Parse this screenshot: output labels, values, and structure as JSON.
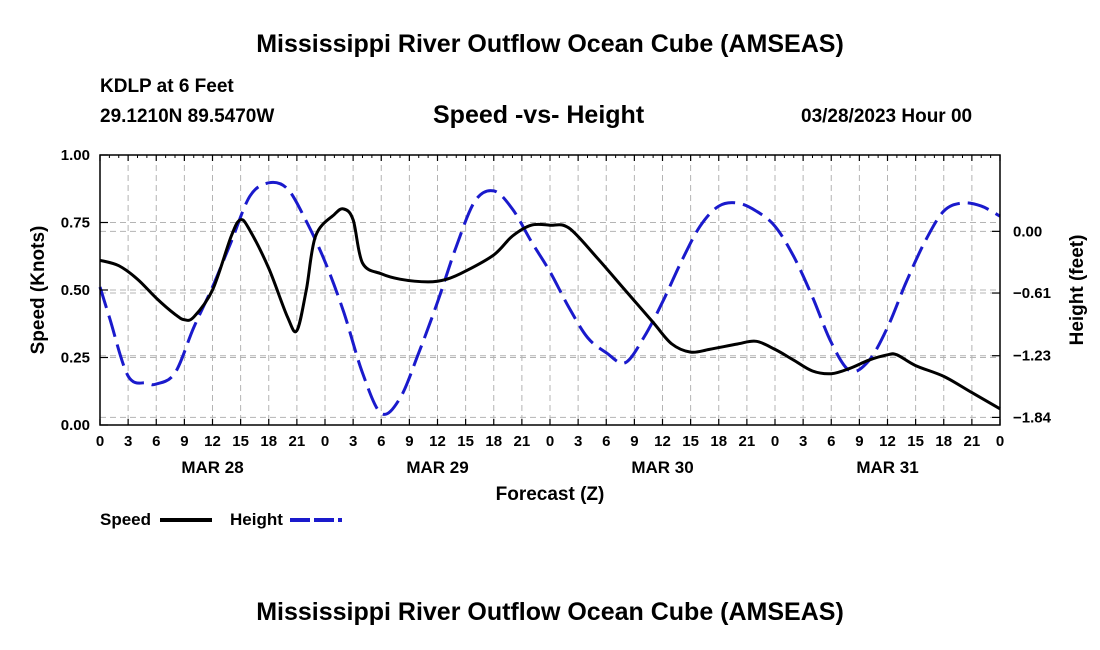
{
  "header": {
    "title": "Mississippi River Outflow Ocean Cube (AMSEAS)",
    "station": "KDLP at 6 Feet",
    "coordinates": "29.1210N  89.5470W",
    "chart_title": "Speed -vs- Height",
    "datetime": "03/28/2023 Hour 00"
  },
  "footer": {
    "title": "Mississippi River Outflow Ocean Cube (AMSEAS)"
  },
  "chart_data": {
    "type": "line",
    "title": "Speed -vs- Height",
    "xlabel": "Forecast (Z)",
    "ylabel_left": "Speed (Knots)",
    "ylabel_right": "Height (feet)",
    "x_range_hours": [
      0,
      96
    ],
    "x_tick_step_hours": 3,
    "x_tick_labels": [
      "0",
      "3",
      "6",
      "9",
      "12",
      "15",
      "18",
      "21",
      "0",
      "3",
      "6",
      "9",
      "12",
      "15",
      "18",
      "21",
      "0",
      "3",
      "6",
      "9",
      "12",
      "15",
      "18",
      "21",
      "0",
      "3",
      "6",
      "9",
      "12",
      "15",
      "18",
      "21",
      "0"
    ],
    "day_labels": [
      {
        "label": "MAR 28",
        "hour": 12
      },
      {
        "label": "MAR 29",
        "hour": 36
      },
      {
        "label": "MAR 30",
        "hour": 60
      },
      {
        "label": "MAR 31",
        "hour": 84
      }
    ],
    "y_left": {
      "range": [
        0,
        1
      ],
      "ticks": [
        0,
        0.25,
        0.5,
        0.75,
        1
      ],
      "tick_labels": [
        "0.00",
        "0.25",
        "0.50",
        "0.75",
        "1.00"
      ]
    },
    "y_right": {
      "range": [
        -1.915,
        0.755
      ],
      "ticks": [
        0.0,
        -0.61,
        -1.23,
        -1.84
      ],
      "tick_labels": [
        "0.00",
        "−0.61",
        "−1.23",
        "−1.84"
      ]
    },
    "grid": true,
    "legend_position": "bottom-left",
    "series": [
      {
        "name": "Speed",
        "axis": "left",
        "color": "#000000",
        "style": "solid",
        "points": [
          [
            0,
            0.61
          ],
          [
            2,
            0.59
          ],
          [
            4,
            0.54
          ],
          [
            6,
            0.47
          ],
          [
            8,
            0.41
          ],
          [
            9,
            0.39
          ],
          [
            10,
            0.4
          ],
          [
            12,
            0.5
          ],
          [
            14,
            0.7
          ],
          [
            15,
            0.76
          ],
          [
            16,
            0.72
          ],
          [
            18,
            0.58
          ],
          [
            20,
            0.4
          ],
          [
            21,
            0.35
          ],
          [
            22,
            0.5
          ],
          [
            23,
            0.7
          ],
          [
            25,
            0.78
          ],
          [
            26,
            0.8
          ],
          [
            27,
            0.76
          ],
          [
            28,
            0.6
          ],
          [
            30,
            0.56
          ],
          [
            32,
            0.54
          ],
          [
            35,
            0.53
          ],
          [
            37,
            0.54
          ],
          [
            39,
            0.57
          ],
          [
            42,
            0.63
          ],
          [
            44,
            0.7
          ],
          [
            46,
            0.74
          ],
          [
            48,
            0.74
          ],
          [
            50,
            0.73
          ],
          [
            53,
            0.62
          ],
          [
            56,
            0.5
          ],
          [
            59,
            0.38
          ],
          [
            61,
            0.3
          ],
          [
            63,
            0.27
          ],
          [
            65,
            0.28
          ],
          [
            68,
            0.3
          ],
          [
            70,
            0.31
          ],
          [
            72,
            0.28
          ],
          [
            74,
            0.24
          ],
          [
            76,
            0.2
          ],
          [
            78,
            0.19
          ],
          [
            80,
            0.21
          ],
          [
            82,
            0.24
          ],
          [
            84,
            0.26
          ],
          [
            85,
            0.26
          ],
          [
            87,
            0.22
          ],
          [
            90,
            0.18
          ],
          [
            93,
            0.12
          ],
          [
            96,
            0.06
          ]
        ]
      },
      {
        "name": "Height",
        "axis": "right",
        "color": "#1a1acc",
        "style": "dashed",
        "points": [
          [
            0,
            -0.55
          ],
          [
            1,
            -0.85
          ],
          [
            3,
            -1.43
          ],
          [
            5,
            -1.5
          ],
          [
            6,
            -1.51
          ],
          [
            8,
            -1.4
          ],
          [
            10,
            -0.95
          ],
          [
            12,
            -0.55
          ],
          [
            14,
            -0.1
          ],
          [
            16,
            0.35
          ],
          [
            18,
            0.48
          ],
          [
            20,
            0.42
          ],
          [
            22,
            0.1
          ],
          [
            24,
            -0.3
          ],
          [
            26,
            -0.8
          ],
          [
            28,
            -1.4
          ],
          [
            30,
            -1.8
          ],
          [
            32,
            -1.65
          ],
          [
            34,
            -1.2
          ],
          [
            36,
            -0.7
          ],
          [
            38,
            -0.15
          ],
          [
            40,
            0.3
          ],
          [
            42,
            0.4
          ],
          [
            44,
            0.22
          ],
          [
            46,
            -0.1
          ],
          [
            48,
            -0.4
          ],
          [
            50,
            -0.75
          ],
          [
            52,
            -1.05
          ],
          [
            54,
            -1.2
          ],
          [
            56,
            -1.3
          ],
          [
            58,
            -1.05
          ],
          [
            60,
            -0.7
          ],
          [
            62,
            -0.3
          ],
          [
            64,
            0.05
          ],
          [
            66,
            0.25
          ],
          [
            68,
            0.28
          ],
          [
            70,
            0.2
          ],
          [
            72,
            0.05
          ],
          [
            74,
            -0.25
          ],
          [
            76,
            -0.65
          ],
          [
            78,
            -1.1
          ],
          [
            80,
            -1.38
          ],
          [
            82,
            -1.28
          ],
          [
            84,
            -0.95
          ],
          [
            86,
            -0.5
          ],
          [
            88,
            -0.1
          ],
          [
            90,
            0.2
          ],
          [
            92,
            0.28
          ],
          [
            94,
            0.25
          ],
          [
            96,
            0.15
          ]
        ]
      }
    ]
  }
}
